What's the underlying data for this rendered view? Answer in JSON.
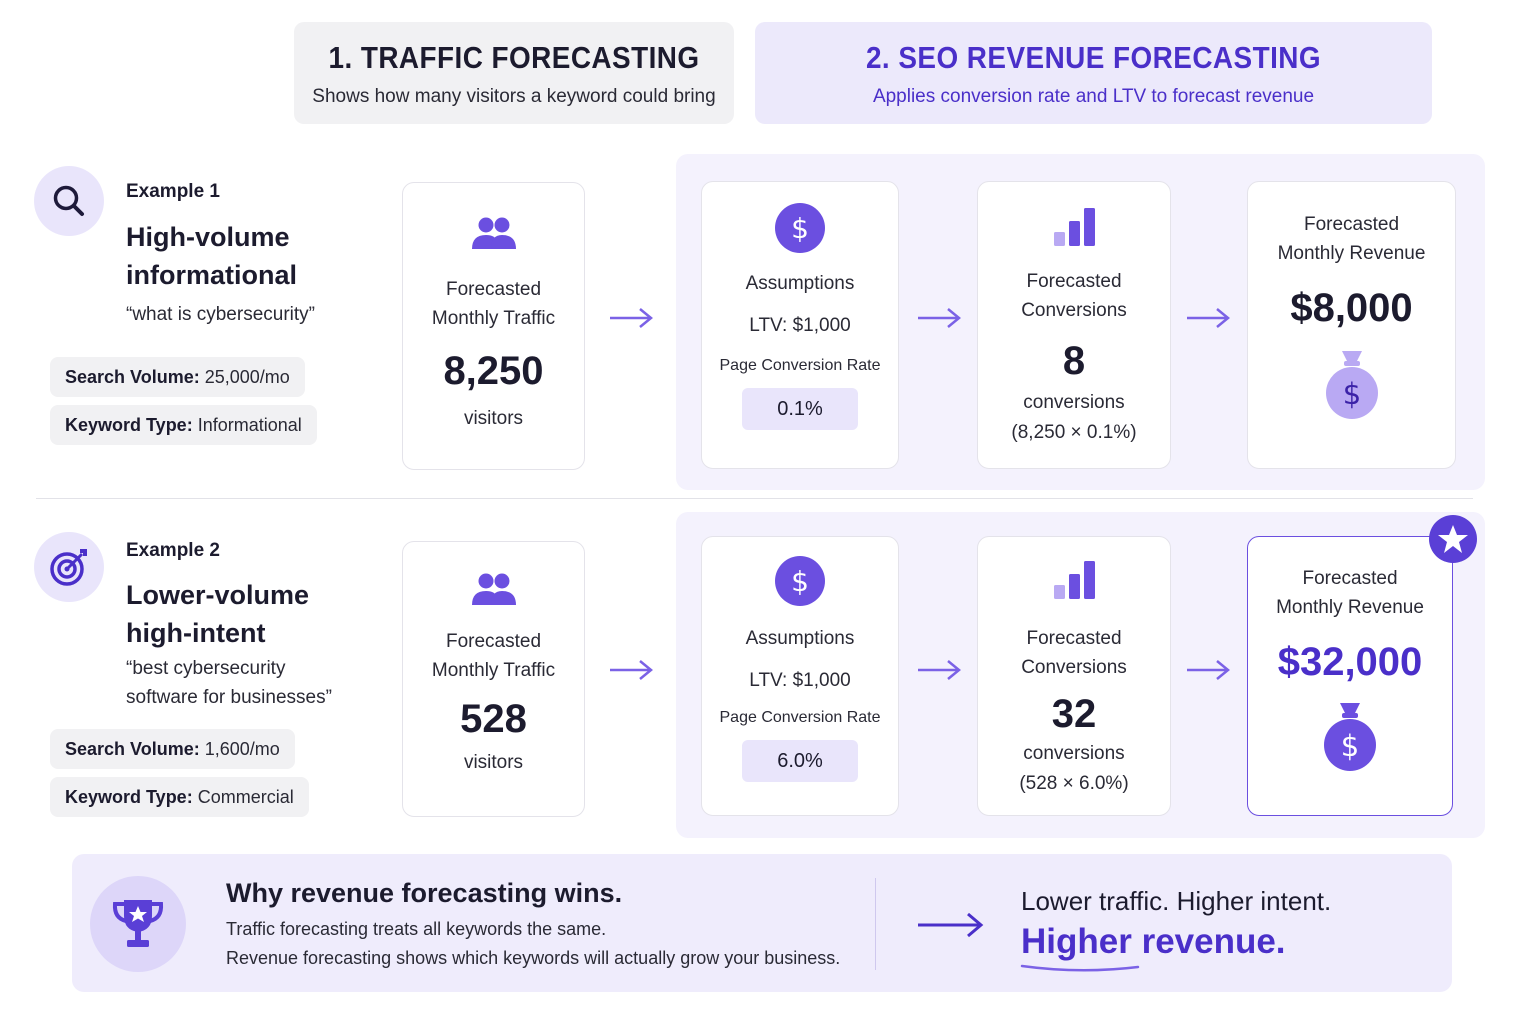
{
  "header": {
    "traffic": {
      "title": "1. TRAFFIC FORECASTING",
      "subtitle": "Shows how many visitors a keyword could bring"
    },
    "revenue": {
      "title": "2. SEO REVENUE FORECASTING",
      "subtitle": "Applies conversion rate and LTV to forecast revenue"
    }
  },
  "examples": [
    {
      "label": "Example 1",
      "title_line1": "High-volume",
      "title_line2": "informational",
      "query_line1": "“what is cybersecurity”",
      "query_line2": "",
      "search_volume_label": "Search Volume:",
      "search_volume": "25,000/mo",
      "keyword_type_label": "Keyword Type:",
      "keyword_type": "Informational",
      "icon": "search-icon",
      "traffic": {
        "label1": "Forecasted",
        "label2": "Monthly Traffic",
        "value": "8,250",
        "unit": "visitors"
      },
      "assumptions": {
        "title": "Assumptions",
        "ltv": "LTV: $1,000",
        "rate_label": "Page Conversion Rate",
        "rate": "0.1%"
      },
      "conversions": {
        "label1": "Forecasted",
        "label2": "Conversions",
        "value": "8",
        "unit": "conversions",
        "formula": "(8,250 × 0.1%)"
      },
      "revenue": {
        "label1": "Forecasted",
        "label2": "Monthly Revenue",
        "value": "$8,000"
      }
    },
    {
      "label": "Example 2",
      "title_line1": "Lower-volume",
      "title_line2": "high-intent",
      "query_line1": "“best cybersecurity",
      "query_line2": "software for businesses”",
      "search_volume_label": "Search Volume:",
      "search_volume": "1,600/mo",
      "keyword_type_label": "Keyword Type:",
      "keyword_type": "Commercial",
      "icon": "target-icon",
      "traffic": {
        "label1": "Forecasted",
        "label2": "Monthly Traffic",
        "value": "528",
        "unit": "visitors"
      },
      "assumptions": {
        "title": "Assumptions",
        "ltv": "LTV: $1,000",
        "rate_label": "Page Conversion Rate",
        "rate": "6.0%"
      },
      "conversions": {
        "label1": "Forecasted",
        "label2": "Conversions",
        "value": "32",
        "unit": "conversions",
        "formula": "(528 × 6.0%)"
      },
      "revenue": {
        "label1": "Forecasted",
        "label2": "Monthly Revenue",
        "value": "$32,000"
      }
    }
  ],
  "banner": {
    "title": "Why revenue forecasting wins.",
    "line1": "Traffic forecasting treats all keywords the same.",
    "line2": "Revenue forecasting shows which keywords will actually grow your business.",
    "tagline1": "Lower traffic. Higher intent.",
    "tagline2": "Higher revenue."
  },
  "colors": {
    "accent": "#6b4fe0",
    "accent_dark": "#4a2fc9",
    "accent_light": "#b9a9f3",
    "panel": "#f4f2fd"
  }
}
